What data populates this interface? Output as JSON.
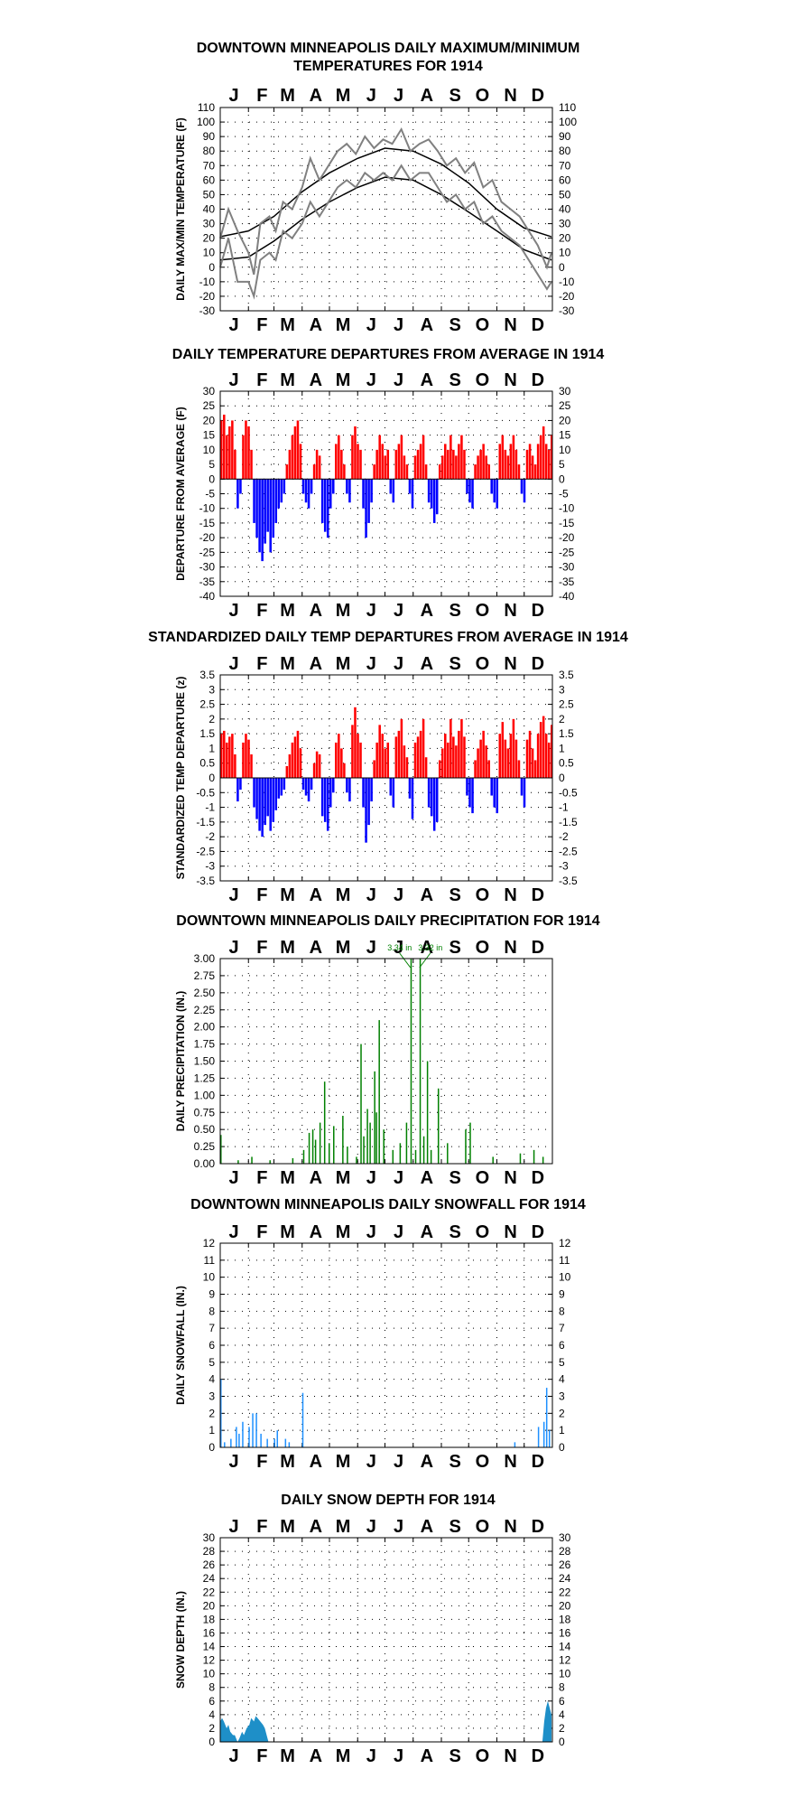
{
  "months": [
    "J",
    "F",
    "M",
    "A",
    "M",
    "J",
    "J",
    "A",
    "S",
    "O",
    "N",
    "D"
  ],
  "chart_data": [
    {
      "id": "maxmin",
      "type": "line",
      "title_lines": [
        "DOWNTOWN MINNEAPOLIS DAILY MAXIMUM/MINIMUM",
        "TEMPERATURES FOR 1914"
      ],
      "ylabel": "DAILY MAX/MIN TEMPERATURE (F)",
      "ylim": [
        -30,
        110
      ],
      "ytick_step": 10,
      "grid": true,
      "colors": {
        "observed": "#808080",
        "normal": "#000000"
      },
      "series": [
        {
          "key": "max_normal",
          "points": [
            [
              1,
              21
            ],
            [
              32,
              25
            ],
            [
              60,
              35
            ],
            [
              91,
              52
            ],
            [
              121,
              65
            ],
            [
              152,
              75
            ],
            [
              182,
              82
            ],
            [
              213,
              80
            ],
            [
              244,
              71
            ],
            [
              274,
              58
            ],
            [
              305,
              40
            ],
            [
              335,
              27
            ],
            [
              365,
              21
            ]
          ]
        },
        {
          "key": "min_normal",
          "points": [
            [
              1,
              5
            ],
            [
              32,
              7
            ],
            [
              60,
              18
            ],
            [
              91,
              33
            ],
            [
              121,
              45
            ],
            [
              152,
              55
            ],
            [
              182,
              62
            ],
            [
              213,
              60
            ],
            [
              244,
              50
            ],
            [
              274,
              38
            ],
            [
              305,
              25
            ],
            [
              335,
              12
            ],
            [
              365,
              5
            ]
          ]
        },
        {
          "key": "max_obs",
          "points": [
            [
              1,
              20
            ],
            [
              10,
              40
            ],
            [
              20,
              25
            ],
            [
              32,
              10
            ],
            [
              38,
              -5
            ],
            [
              45,
              30
            ],
            [
              55,
              35
            ],
            [
              62,
              25
            ],
            [
              70,
              45
            ],
            [
              80,
              40
            ],
            [
              91,
              55
            ],
            [
              100,
              75
            ],
            [
              110,
              60
            ],
            [
              120,
              70
            ],
            [
              130,
              80
            ],
            [
              140,
              85
            ],
            [
              150,
              78
            ],
            [
              160,
              90
            ],
            [
              170,
              82
            ],
            [
              180,
              88
            ],
            [
              190,
              85
            ],
            [
              200,
              95
            ],
            [
              210,
              80
            ],
            [
              220,
              85
            ],
            [
              230,
              88
            ],
            [
              240,
              80
            ],
            [
              250,
              70
            ],
            [
              260,
              75
            ],
            [
              270,
              65
            ],
            [
              280,
              72
            ],
            [
              290,
              55
            ],
            [
              300,
              60
            ],
            [
              310,
              45
            ],
            [
              320,
              40
            ],
            [
              330,
              35
            ],
            [
              340,
              25
            ],
            [
              350,
              15
            ],
            [
              360,
              0
            ],
            [
              365,
              10
            ]
          ]
        },
        {
          "key": "min_obs",
          "points": [
            [
              1,
              0
            ],
            [
              10,
              20
            ],
            [
              20,
              -10
            ],
            [
              32,
              -10
            ],
            [
              38,
              -20
            ],
            [
              45,
              5
            ],
            [
              55,
              10
            ],
            [
              62,
              5
            ],
            [
              70,
              25
            ],
            [
              80,
              20
            ],
            [
              91,
              30
            ],
            [
              100,
              45
            ],
            [
              110,
              35
            ],
            [
              120,
              45
            ],
            [
              130,
              55
            ],
            [
              140,
              60
            ],
            [
              150,
              55
            ],
            [
              160,
              65
            ],
            [
              170,
              60
            ],
            [
              180,
              65
            ],
            [
              190,
              60
            ],
            [
              200,
              70
            ],
            [
              210,
              60
            ],
            [
              220,
              65
            ],
            [
              230,
              65
            ],
            [
              240,
              55
            ],
            [
              250,
              45
            ],
            [
              260,
              50
            ],
            [
              270,
              40
            ],
            [
              280,
              45
            ],
            [
              290,
              30
            ],
            [
              300,
              35
            ],
            [
              310,
              25
            ],
            [
              320,
              20
            ],
            [
              330,
              15
            ],
            [
              340,
              5
            ],
            [
              350,
              -5
            ],
            [
              360,
              -15
            ],
            [
              365,
              -10
            ]
          ]
        }
      ]
    },
    {
      "id": "departure",
      "type": "bar",
      "title_lines": [
        "DAILY TEMPERATURE DEPARTURES FROM AVERAGE IN 1914"
      ],
      "ylabel": "DEPARTURE FROM AVERAGE (F)",
      "ylim": [
        -40,
        30
      ],
      "ytick_step": 5,
      "grid": true,
      "colors": {
        "positive": "#ff0000",
        "negative": "#0000ff"
      },
      "values": [
        20,
        22,
        15,
        18,
        20,
        10,
        -10,
        -5,
        15,
        20,
        18,
        10,
        -15,
        -20,
        -25,
        -28,
        -22,
        -18,
        -25,
        -20,
        -15,
        -10,
        -8,
        -5,
        5,
        10,
        15,
        18,
        20,
        12,
        -5,
        -8,
        -10,
        -5,
        5,
        10,
        8,
        -15,
        -18,
        -20,
        -10,
        -5,
        12,
        15,
        10,
        5,
        -5,
        -8,
        15,
        18,
        12,
        10,
        -10,
        -20,
        -15,
        -8,
        5,
        10,
        15,
        12,
        8,
        10,
        -5,
        -8,
        10,
        12,
        15,
        8,
        5,
        -5,
        -10,
        8,
        10,
        12,
        15,
        5,
        -8,
        -10,
        -15,
        -12,
        5,
        8,
        12,
        10,
        15,
        10,
        8,
        12,
        15,
        10,
        -5,
        -8,
        -10,
        5,
        8,
        10,
        12,
        8,
        5,
        -5,
        -8,
        -10,
        12,
        15,
        10,
        8,
        12,
        15,
        10,
        5,
        -5,
        -8,
        10,
        12,
        8,
        5,
        12,
        15,
        18,
        12,
        10,
        15,
        20,
        15,
        12,
        -10,
        -15,
        -20,
        -25,
        -18,
        -22,
        -15
      ],
      "value_step_days": 3
    },
    {
      "id": "standardized",
      "type": "bar",
      "title_lines": [
        "STANDARDIZED DAILY TEMP DEPARTURES FROM AVERAGE IN 1914"
      ],
      "ylabel": "STANDARDIZED TEMP DEPARTURE (z)",
      "ylim": [
        -3.5,
        3.5
      ],
      "ytick_step": 0.5,
      "grid": true,
      "colors": {
        "positive": "#ff0000",
        "negative": "#0000ff"
      },
      "values": [
        1.5,
        1.6,
        1.2,
        1.4,
        1.5,
        0.8,
        -0.8,
        -0.4,
        1.2,
        1.5,
        1.3,
        0.8,
        -1.0,
        -1.4,
        -1.8,
        -2.0,
        -1.6,
        -1.3,
        -1.8,
        -1.5,
        -1.1,
        -0.7,
        -0.6,
        -0.4,
        0.4,
        0.8,
        1.2,
        1.4,
        1.6,
        1.0,
        -0.4,
        -0.6,
        -0.8,
        -0.4,
        0.5,
        0.9,
        0.8,
        -1.3,
        -1.5,
        -1.8,
        -1.0,
        -0.5,
        1.2,
        1.5,
        1.0,
        0.5,
        -0.5,
        -0.8,
        1.8,
        2.4,
        1.5,
        1.2,
        -1.0,
        -2.2,
        -1.6,
        -0.8,
        0.6,
        1.2,
        1.8,
        1.5,
        1.0,
        1.2,
        -0.6,
        -1.0,
        1.4,
        1.6,
        2.0,
        1.1,
        0.7,
        -0.7,
        -1.4,
        1.2,
        1.4,
        1.6,
        2.0,
        0.7,
        -1.0,
        -1.3,
        -1.8,
        -1.5,
        0.6,
        1.0,
        1.5,
        1.2,
        2.0,
        1.4,
        1.1,
        1.6,
        2.0,
        1.4,
        -0.6,
        -1.0,
        -1.2,
        0.6,
        1.0,
        1.3,
        1.6,
        1.1,
        0.6,
        -0.6,
        -1.0,
        -1.2,
        1.5,
        1.9,
        1.3,
        1.0,
        1.5,
        2.0,
        1.3,
        0.6,
        -0.6,
        -1.0,
        1.3,
        1.6,
        1.0,
        0.6,
        1.5,
        1.9,
        2.1,
        1.5,
        1.2,
        1.8,
        2.4,
        1.8,
        1.5,
        -0.8,
        -1.2,
        -1.6,
        -2.2,
        -1.5,
        -1.8,
        -1.2
      ],
      "value_step_days": 3
    },
    {
      "id": "precip",
      "type": "bar",
      "title_lines": [
        "DOWNTOWN MINNEAPOLIS DAILY PRECIPITATION FOR 1914"
      ],
      "ylabel": "DAILY PRECIPITATION (IN.)",
      "ylim": [
        0,
        3
      ],
      "ytick_step": 0.25,
      "tick_decimals": 2,
      "right_axis": false,
      "grid": true,
      "colors": {
        "bar": "#008000"
      },
      "events": [
        [
          1,
          0.42
        ],
        [
          20,
          0.05
        ],
        [
          35,
          0.1
        ],
        [
          55,
          0.05
        ],
        [
          80,
          0.08
        ],
        [
          92,
          0.2
        ],
        [
          98,
          0.45
        ],
        [
          102,
          0.5
        ],
        [
          105,
          0.35
        ],
        [
          110,
          0.6
        ],
        [
          115,
          1.2
        ],
        [
          120,
          0.3
        ],
        [
          125,
          0.55
        ],
        [
          135,
          0.7
        ],
        [
          140,
          0.25
        ],
        [
          150,
          0.1
        ],
        [
          155,
          1.75
        ],
        [
          158,
          0.4
        ],
        [
          162,
          0.8
        ],
        [
          165,
          0.6
        ],
        [
          170,
          1.35
        ],
        [
          172,
          0.75
        ],
        [
          175,
          2.1
        ],
        [
          180,
          0.5
        ],
        [
          190,
          0.2
        ],
        [
          198,
          0.3
        ],
        [
          205,
          0.6
        ],
        [
          210,
          3.34
        ],
        [
          215,
          0.2
        ],
        [
          220,
          3.32
        ],
        [
          224,
          0.4
        ],
        [
          228,
          1.5
        ],
        [
          232,
          0.2
        ],
        [
          240,
          1.1
        ],
        [
          250,
          0.3
        ],
        [
          270,
          0.5
        ],
        [
          275,
          0.6
        ],
        [
          300,
          0.1
        ],
        [
          330,
          0.15
        ],
        [
          345,
          0.2
        ],
        [
          355,
          0.1
        ]
      ],
      "annotations": [
        {
          "day": 210,
          "value": 3.34,
          "label": "3.34 in"
        },
        {
          "day": 220,
          "value": 3.32,
          "label": "3.32 in"
        }
      ]
    },
    {
      "id": "snowfall",
      "type": "bar",
      "title_lines": [
        "DOWNTOWN MINNEAPOLIS DAILY SNOWFALL FOR 1914"
      ],
      "ylabel": "DAILY SNOWFALL (IN.)",
      "ylim": [
        0,
        12
      ],
      "ytick_step": 1,
      "grid": true,
      "colors": {
        "bar": "#1e90ff"
      },
      "events": [
        [
          1,
          4
        ],
        [
          5,
          0.3
        ],
        [
          12,
          0.5
        ],
        [
          18,
          1.2
        ],
        [
          21,
          0.8
        ],
        [
          25,
          1.5
        ],
        [
          32,
          1.2
        ],
        [
          36,
          2.0
        ],
        [
          40,
          2.0
        ],
        [
          45,
          0.8
        ],
        [
          52,
          0.5
        ],
        [
          60,
          0.5
        ],
        [
          63,
          1.0
        ],
        [
          72,
          0.5
        ],
        [
          76,
          0.3
        ],
        [
          91,
          3.2
        ],
        [
          324,
          0.3
        ],
        [
          350,
          1.2
        ],
        [
          356,
          1.5
        ],
        [
          359,
          3.5
        ],
        [
          362,
          1.0
        ]
      ]
    },
    {
      "id": "snowdepth",
      "type": "area",
      "title_lines": [
        "DAILY SNOW DEPTH FOR 1914"
      ],
      "ylabel": "SNOW DEPTH (IN.)",
      "ylim": [
        0,
        30
      ],
      "ytick_step": 2,
      "grid": true,
      "colors": {
        "fill": "#1e8fc8"
      },
      "points": [
        [
          1,
          3
        ],
        [
          3,
          3.5
        ],
        [
          5,
          3
        ],
        [
          8,
          2
        ],
        [
          10,
          2.5
        ],
        [
          12,
          1.5
        ],
        [
          15,
          1
        ],
        [
          17,
          1
        ],
        [
          20,
          0
        ],
        [
          22,
          0.5
        ],
        [
          25,
          1.5
        ],
        [
          27,
          1
        ],
        [
          30,
          2
        ],
        [
          33,
          2.5
        ],
        [
          35,
          3.5
        ],
        [
          38,
          3
        ],
        [
          40,
          3.8
        ],
        [
          42,
          3.5
        ],
        [
          45,
          3
        ],
        [
          48,
          2.5
        ],
        [
          50,
          2
        ],
        [
          52,
          1
        ],
        [
          54,
          0
        ],
        [
          355,
          0
        ],
        [
          357,
          3
        ],
        [
          359,
          5
        ],
        [
          361,
          6
        ],
        [
          363,
          5
        ],
        [
          365,
          4
        ]
      ]
    }
  ]
}
